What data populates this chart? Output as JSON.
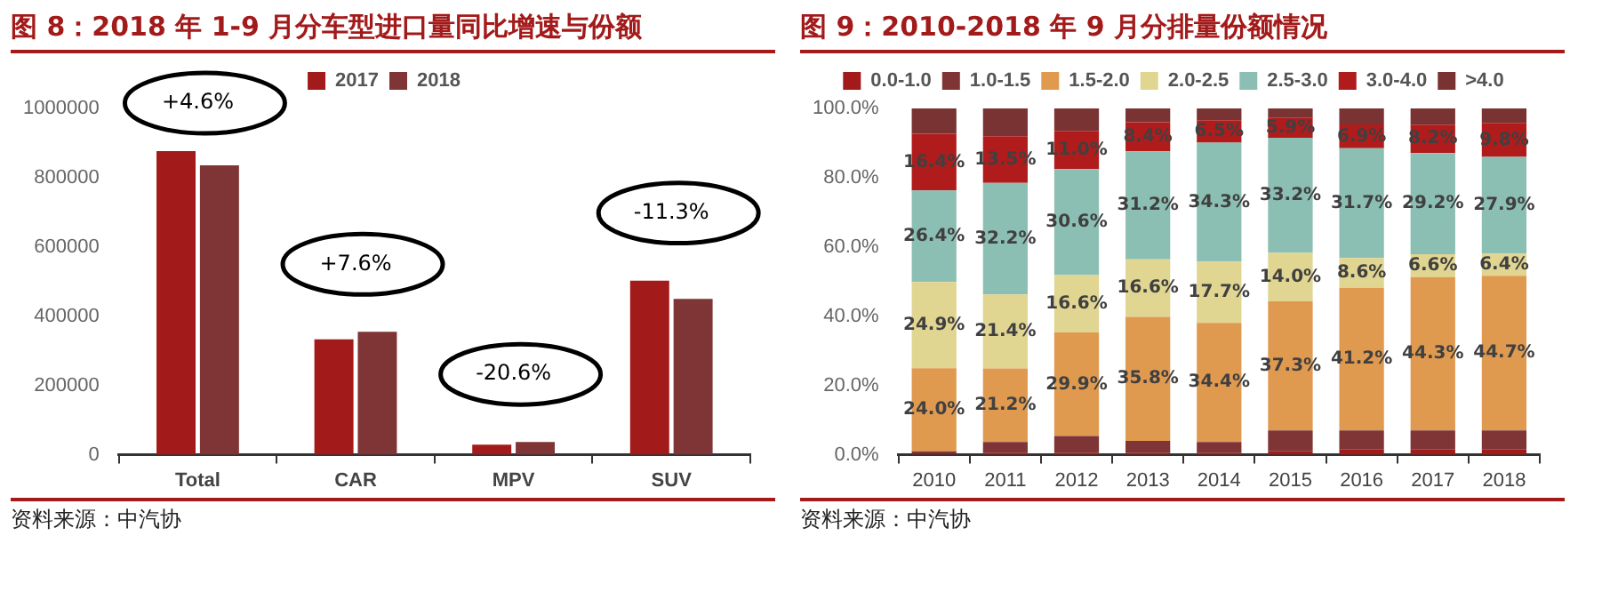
{
  "chart_data": [
    {
      "type": "bar",
      "title": "图 8：2018 年 1-9 月分车型进口量同比增速与份额",
      "categories": [
        "Total",
        "CAR",
        "MPV",
        "SUV"
      ],
      "series": [
        {
          "name": "2017",
          "color": "#a31a1a",
          "values": [
            877000,
            333000,
            29000,
            503000
          ]
        },
        {
          "name": "2018",
          "color": "#7f3535",
          "values": [
            836000,
            355000,
            37000,
            450000
          ]
        }
      ],
      "ylim": [
        0,
        1000000
      ],
      "yticks": [
        0,
        200000,
        400000,
        600000,
        800000,
        1000000
      ],
      "legend": "top",
      "annotations": [
        "+4.6%",
        "+7.6%",
        "-20.6%",
        "-11.3%",
        "资料来源：中汽协"
      ]
    },
    {
      "type": "bar",
      "title": "图 9：2010-2018 年 9 月分排量份额情况",
      "categories": [
        "2010",
        "2011",
        "2012",
        "2013",
        "2014",
        "2015",
        "2016",
        "2017",
        "2018"
      ],
      "stacked": true,
      "series": [
        {
          "name": "0.0-1.0",
          "color": "#a31a1a",
          "values": [
            0.3,
            0.5,
            0.5,
            0.5,
            0.5,
            1.0,
            1.5,
            1.5,
            1.5
          ]
        },
        {
          "name": "1.0-1.5",
          "color": "#7f3535",
          "values": [
            0.7,
            3.2,
            4.9,
            3.5,
            3.2,
            6.0,
            5.5,
            5.5,
            5.5
          ]
        },
        {
          "name": "1.5-2.0",
          "color": "#e09a50",
          "values": [
            24.0,
            21.2,
            29.9,
            35.8,
            34.4,
            37.3,
            41.2,
            44.3,
            44.7
          ],
          "value_labels": [
            "24.0%",
            "21.2%",
            "29.9%",
            "35.8%",
            "34.4%",
            "37.3%",
            "41.2%",
            "44.3%",
            "44.7%"
          ]
        },
        {
          "name": "2.0-2.5",
          "color": "#e0d591",
          "values": [
            24.9,
            21.4,
            16.6,
            16.6,
            17.7,
            14.0,
            8.6,
            6.6,
            6.4
          ],
          "value_labels": [
            "24.9%",
            "21.4%",
            "16.6%",
            "16.6%",
            "17.7%",
            "14.0%",
            "8.6%",
            "6.6%",
            "6.4%"
          ]
        },
        {
          "name": "2.5-3.0",
          "color": "#8cbfb3",
          "values": [
            26.4,
            32.2,
            30.6,
            31.2,
            34.3,
            33.2,
            31.7,
            29.2,
            27.9
          ],
          "value_labels": [
            "26.4%",
            "32.2%",
            "30.6%",
            "31.2%",
            "34.3%",
            "33.2%",
            "31.7%",
            "29.2%",
            "27.9%"
          ]
        },
        {
          "name": "3.0-4.0",
          "color": "#b01c1c",
          "values": [
            16.4,
            13.5,
            11.0,
            8.4,
            6.5,
            5.9,
            6.9,
            8.2,
            9.8
          ],
          "value_labels": [
            "16.4%",
            "13.5%",
            "11.0%",
            "8.4%",
            "6.5%",
            "5.9%",
            "6.9%",
            "8.2%",
            "9.8%"
          ]
        },
        {
          "name": ">4.0",
          "color": "#7a3333",
          "values": [
            7.3,
            8.0,
            6.5,
            4.0,
            3.4,
            2.6,
            4.6,
            4.7,
            4.2
          ]
        }
      ],
      "ylim": [
        0,
        100
      ],
      "yticks": [
        {
          "value": 0,
          "label": "0.0%"
        },
        {
          "value": 20,
          "label": "20.0%"
        },
        {
          "value": 40,
          "label": "40.0%"
        },
        {
          "value": 60,
          "label": "60.0%"
        },
        {
          "value": 80,
          "label": "80.0%"
        },
        {
          "value": 100,
          "label": "100.0%"
        }
      ],
      "legend": "top",
      "annotations": [
        "资料来源：中汽协"
      ]
    }
  ]
}
